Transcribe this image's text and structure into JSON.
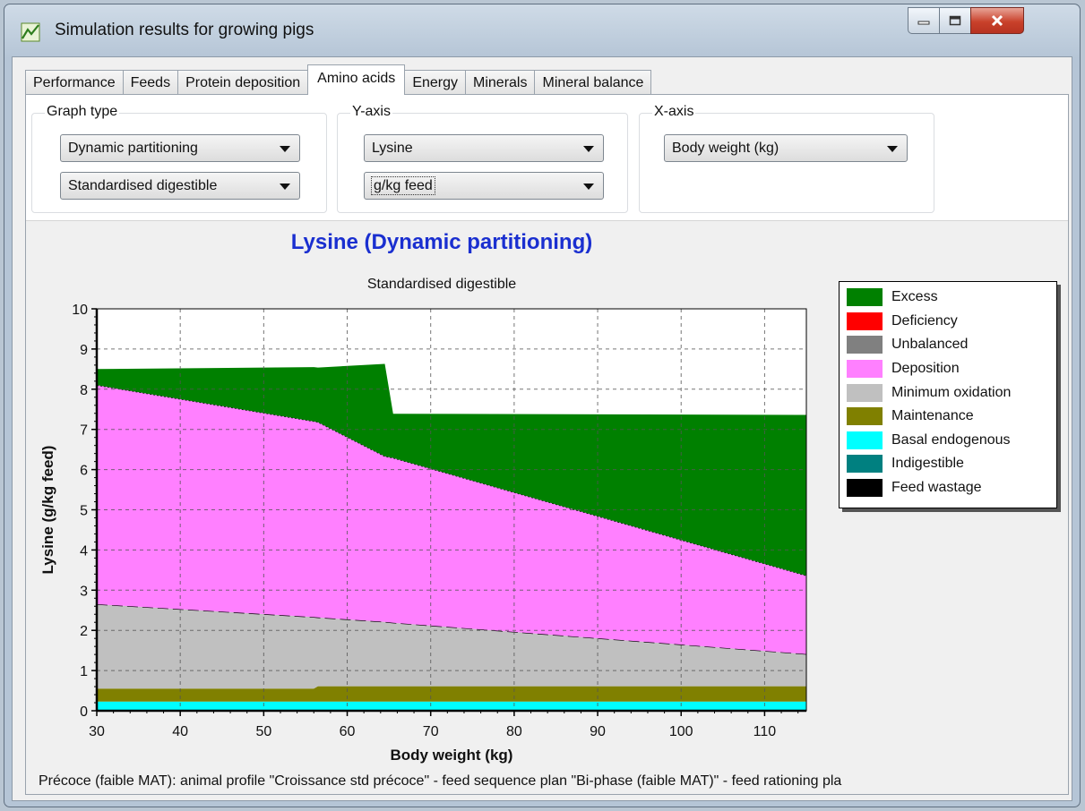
{
  "window": {
    "title": "Simulation results for growing pigs",
    "controls": [
      "minimize-icon",
      "maximize-icon",
      "close-icon"
    ]
  },
  "tabs": [
    {
      "label": "Performance",
      "active": false
    },
    {
      "label": "Feeds",
      "active": false
    },
    {
      "label": "Protein deposition",
      "active": false
    },
    {
      "label": "Amino acids",
      "active": true
    },
    {
      "label": "Energy",
      "active": false
    },
    {
      "label": "Minerals",
      "active": false
    },
    {
      "label": "Mineral balance",
      "active": false
    }
  ],
  "controls": {
    "graph_type": {
      "label": "Graph type",
      "selects": [
        "Dynamic partitioning",
        "Standardised digestible"
      ]
    },
    "y_axis": {
      "label": "Y-axis",
      "selects": [
        "Lysine",
        "g/kg feed"
      ]
    },
    "x_axis": {
      "label": "X-axis",
      "selects": [
        "Body weight (kg)"
      ]
    }
  },
  "footer": "Précoce (faible MAT): animal profile \"Croissance std précoce\" - feed sequence plan \"Bi-phase (faible MAT)\" - feed rationing pla",
  "colors": {
    "title": "#1a2fd0",
    "excess": "#008000",
    "deficiency": "#ff0000",
    "unbalanced": "#808080",
    "deposition": "#ff80ff",
    "minimum_oxidation": "#c0c0c0",
    "maintenance": "#808000",
    "basal_endogenous": "#00ffff",
    "indigestible": "#008080",
    "feed_wastage": "#000000"
  },
  "chart_data": {
    "type": "area",
    "stacked": true,
    "title": "Lysine (Dynamic partitioning)",
    "subtitle": "Standardised digestible",
    "xlabel": "Body weight (kg)",
    "ylabel": "Lysine (g/kg feed)",
    "xlim": [
      30,
      115
    ],
    "ylim": [
      0,
      10
    ],
    "xticks": [
      30,
      40,
      50,
      60,
      70,
      80,
      90,
      100,
      110
    ],
    "yticks": [
      0,
      1,
      2,
      3,
      4,
      5,
      6,
      7,
      8,
      9,
      10
    ],
    "grid": "dashed",
    "legend_position": "right",
    "x": [
      30,
      56,
      56.5,
      64.5,
      65.5,
      115
    ],
    "series": [
      {
        "name": "Excess",
        "color": "#008000",
        "values": [
          0.4,
          1.35,
          1.36,
          2.3,
          1.1,
          4.0
        ]
      },
      {
        "name": "Deficiency",
        "color": "#ff0000",
        "values": [
          0,
          0,
          0,
          0,
          0,
          0
        ]
      },
      {
        "name": "Unbalanced",
        "color": "#808080",
        "values": [
          0,
          0,
          0,
          0,
          0,
          0
        ]
      },
      {
        "name": "Deposition",
        "color": "#ff80ff",
        "values": [
          5.45,
          4.87,
          4.86,
          4.12,
          4.1,
          1.95
        ]
      },
      {
        "name": "Minimum oxidation",
        "color": "#c0c0c0",
        "values": [
          2.1,
          1.78,
          1.71,
          1.6,
          1.58,
          0.8
        ]
      },
      {
        "name": "Maintenance",
        "color": "#808000",
        "values": [
          0.32,
          0.32,
          0.38,
          0.38,
          0.38,
          0.38
        ]
      },
      {
        "name": "Basal endogenous",
        "color": "#00ffff",
        "values": [
          0.23,
          0.23,
          0.23,
          0.23,
          0.23,
          0.23
        ]
      },
      {
        "name": "Indigestible",
        "color": "#008080",
        "values": [
          0,
          0,
          0,
          0,
          0,
          0
        ]
      },
      {
        "name": "Feed wastage",
        "color": "#000000",
        "values": [
          0,
          0,
          0,
          0,
          0,
          0
        ]
      }
    ]
  }
}
